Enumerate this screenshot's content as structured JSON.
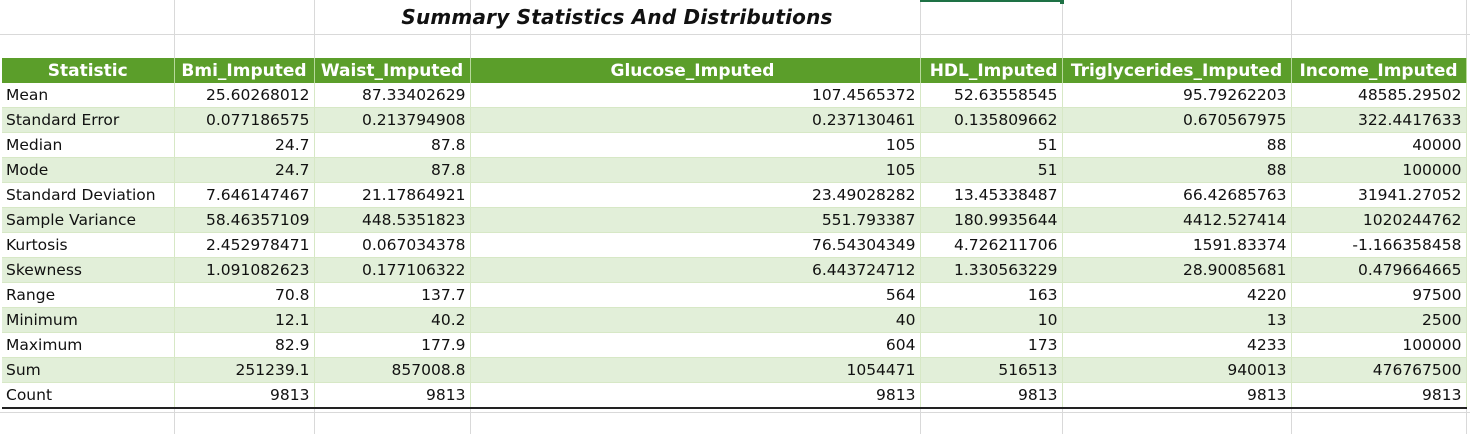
{
  "title": "Summary Statistics And Distributions",
  "table": {
    "headers": [
      "Statistic",
      "Bmi_Imputed",
      "Waist_Imputed",
      "Glucose_Imputed",
      "HDL_Imputed",
      "Triglycerides_Imputed",
      "Income_Imputed"
    ],
    "rows": [
      [
        "Mean",
        "25.60268012",
        "87.33402629",
        "107.4565372",
        "52.63558545",
        "95.79262203",
        "48585.29502"
      ],
      [
        "Standard Error",
        "0.077186575",
        "0.213794908",
        "0.237130461",
        "0.135809662",
        "0.670567975",
        "322.4417633"
      ],
      [
        "Median",
        "24.7",
        "87.8",
        "105",
        "51",
        "88",
        "40000"
      ],
      [
        "Mode",
        "24.7",
        "87.8",
        "105",
        "51",
        "88",
        "100000"
      ],
      [
        "Standard Deviation",
        "7.646147467",
        "21.17864921",
        "23.49028282",
        "13.45338487",
        "66.42685763",
        "31941.27052"
      ],
      [
        "Sample Variance",
        "58.46357109",
        "448.5351823",
        "551.793387",
        "180.9935644",
        "4412.527414",
        "1020244762"
      ],
      [
        "Kurtosis",
        "2.452978471",
        "0.067034378",
        "76.54304349",
        "4.726211706",
        "1591.83374",
        "-1.166358458"
      ],
      [
        "Skewness",
        "1.091082623",
        "0.177106322",
        "6.443724712",
        "1.330563229",
        "28.90085681",
        "0.479664665"
      ],
      [
        "Range",
        "70.8",
        "137.7",
        "564",
        "163",
        "4220",
        "97500"
      ],
      [
        "Minimum",
        "12.1",
        "40.2",
        "40",
        "10",
        "13",
        "2500"
      ],
      [
        "Maximum",
        "82.9",
        "177.9",
        "604",
        "173",
        "4233",
        "100000"
      ],
      [
        "Sum",
        "251239.1",
        "857008.8",
        "1054471",
        "516513",
        "940013",
        "476767500"
      ],
      [
        "Count",
        "9813",
        "9813",
        "9813",
        "9813",
        "9813",
        "9813"
      ]
    ]
  },
  "colors": {
    "header_bg": "#5b9e2a",
    "band_bg": "#e2efd9",
    "selection": "#1e7145"
  }
}
